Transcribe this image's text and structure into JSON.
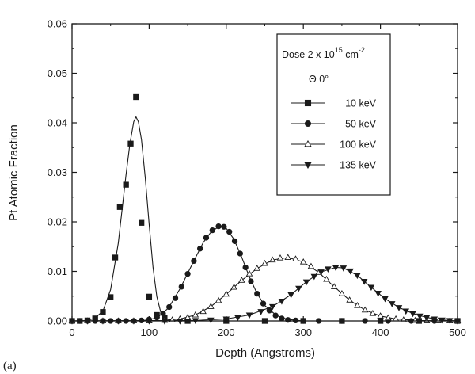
{
  "panel_label": "(a)",
  "chart_data": {
    "type": "scatter",
    "xlabel": "Depth (Angstroms)",
    "ylabel": "Pt Atomic Fraction",
    "xlim": [
      0,
      500
    ],
    "ylim": [
      0,
      0.06
    ],
    "x_ticks": [
      "0",
      "100",
      "200",
      "300",
      "400",
      "500"
    ],
    "y_ticks": [
      "0.00",
      "0.01",
      "0.02",
      "0.03",
      "0.04",
      "0.05",
      "0.06"
    ],
    "grid": false,
    "legend": {
      "placement": "top-right",
      "title_line1": "Dose 2 x 10",
      "title_sup1": "15",
      "title_mid": " cm",
      "title_sup2": "-2",
      "subtitle": "Θ  0°"
    },
    "series": [
      {
        "name": "10 keV",
        "marker": "square",
        "fill": "#1a1a1a",
        "points": [
          [
            0,
            0
          ],
          [
            10,
            0
          ],
          [
            20,
            0.0001
          ],
          [
            30,
            0.0005
          ],
          [
            40,
            0.0018
          ],
          [
            50,
            0.0048
          ],
          [
            56,
            0.0128
          ],
          [
            62,
            0.023
          ],
          [
            70,
            0.0275
          ],
          [
            76,
            0.0358
          ],
          [
            83,
            0.0452
          ],
          [
            90,
            0.0198
          ],
          [
            100,
            0.0049
          ],
          [
            110,
            0.0012
          ],
          [
            120,
            0.0006
          ],
          [
            150,
            0
          ],
          [
            200,
            0
          ],
          [
            250,
            0
          ],
          [
            300,
            0
          ],
          [
            350,
            0
          ],
          [
            400,
            0
          ],
          [
            450,
            0
          ],
          [
            500,
            0
          ]
        ],
        "fit": [
          [
            0,
            0
          ],
          [
            20,
            0.0001
          ],
          [
            30,
            0.0006
          ],
          [
            40,
            0.002
          ],
          [
            50,
            0.0063
          ],
          [
            60,
            0.0157
          ],
          [
            70,
            0.0295
          ],
          [
            75,
            0.0358
          ],
          [
            80,
            0.0402
          ],
          [
            83,
            0.0412
          ],
          [
            86,
            0.0402
          ],
          [
            90,
            0.0366
          ],
          [
            95,
            0.0289
          ],
          [
            100,
            0.0195
          ],
          [
            105,
            0.0108
          ],
          [
            110,
            0.0049
          ],
          [
            115,
            0.0018
          ],
          [
            120,
            0.0006
          ],
          [
            130,
            0.0001
          ],
          [
            140,
            0
          ],
          [
            500,
            0
          ]
        ]
      },
      {
        "name": "50 keV",
        "marker": "circle",
        "fill": "#1a1a1a",
        "points": [
          [
            0,
            0
          ],
          [
            10,
            0
          ],
          [
            20,
            0
          ],
          [
            30,
            0
          ],
          [
            40,
            0
          ],
          [
            50,
            0
          ],
          [
            60,
            0
          ],
          [
            70,
            0
          ],
          [
            80,
            0
          ],
          [
            90,
            0.0001
          ],
          [
            100,
            0.0003
          ],
          [
            110,
            0.0007
          ],
          [
            118,
            0.0015
          ],
          [
            126,
            0.0028
          ],
          [
            134,
            0.0046
          ],
          [
            142,
            0.0069
          ],
          [
            150,
            0.0095
          ],
          [
            158,
            0.0121
          ],
          [
            166,
            0.0146
          ],
          [
            174,
            0.0168
          ],
          [
            182,
            0.0183
          ],
          [
            190,
            0.0191
          ],
          [
            197,
            0.019
          ],
          [
            204,
            0.018
          ],
          [
            211,
            0.0161
          ],
          [
            218,
            0.0136
          ],
          [
            225,
            0.0108
          ],
          [
            232,
            0.008
          ],
          [
            240,
            0.0055
          ],
          [
            248,
            0.0035
          ],
          [
            256,
            0.0021
          ],
          [
            264,
            0.0011
          ],
          [
            272,
            0.0005
          ],
          [
            280,
            0.0002
          ],
          [
            290,
            0.0001
          ],
          [
            300,
            0
          ],
          [
            320,
            0
          ],
          [
            350,
            0
          ],
          [
            380,
            0
          ],
          [
            410,
            0
          ],
          [
            440,
            0
          ],
          [
            470,
            0
          ],
          [
            500,
            0
          ]
        ],
        "fit": [
          [
            0,
            0
          ],
          [
            90,
            0
          ],
          [
            110,
            0.0006
          ],
          [
            125,
            0.0026
          ],
          [
            140,
            0.0065
          ],
          [
            155,
            0.0112
          ],
          [
            170,
            0.0158
          ],
          [
            180,
            0.0179
          ],
          [
            190,
            0.019
          ],
          [
            195,
            0.0192
          ],
          [
            200,
            0.0187
          ],
          [
            210,
            0.0165
          ],
          [
            220,
            0.0129
          ],
          [
            230,
            0.0089
          ],
          [
            240,
            0.0055
          ],
          [
            250,
            0.0031
          ],
          [
            265,
            0.0011
          ],
          [
            280,
            0.0003
          ],
          [
            300,
            0
          ],
          [
            500,
            0
          ]
        ]
      },
      {
        "name": "100 keV",
        "marker": "triangle-up",
        "fill": "#ffffff",
        "points": [
          [
            0,
            0
          ],
          [
            20,
            0
          ],
          [
            40,
            0
          ],
          [
            60,
            0
          ],
          [
            80,
            0
          ],
          [
            100,
            0
          ],
          [
            120,
            0.0001
          ],
          [
            130,
            0.0002
          ],
          [
            140,
            0.0004
          ],
          [
            150,
            0.0007
          ],
          [
            160,
            0.0012
          ],
          [
            170,
            0.0019
          ],
          [
            180,
            0.0029
          ],
          [
            190,
            0.0041
          ],
          [
            200,
            0.0054
          ],
          [
            210,
            0.0068
          ],
          [
            220,
            0.0082
          ],
          [
            230,
            0.0095
          ],
          [
            240,
            0.0106
          ],
          [
            250,
            0.0116
          ],
          [
            260,
            0.0123
          ],
          [
            270,
            0.0127
          ],
          [
            280,
            0.0128
          ],
          [
            290,
            0.0125
          ],
          [
            300,
            0.0119
          ],
          [
            310,
            0.011
          ],
          [
            320,
            0.0098
          ],
          [
            330,
            0.0084
          ],
          [
            340,
            0.0069
          ],
          [
            350,
            0.0055
          ],
          [
            360,
            0.0042
          ],
          [
            370,
            0.0031
          ],
          [
            380,
            0.0022
          ],
          [
            390,
            0.0015
          ],
          [
            400,
            0.001
          ],
          [
            410,
            0.0006
          ],
          [
            420,
            0.0004
          ],
          [
            430,
            0.0002
          ],
          [
            445,
            0.0001
          ],
          [
            460,
            0
          ],
          [
            475,
            0
          ],
          [
            490,
            0
          ],
          [
            500,
            0
          ]
        ],
        "fit": [
          [
            0,
            0
          ],
          [
            120,
            0.0001
          ],
          [
            140,
            0.0004
          ],
          [
            160,
            0.0012
          ],
          [
            180,
            0.0029
          ],
          [
            200,
            0.0054
          ],
          [
            220,
            0.0082
          ],
          [
            240,
            0.0106
          ],
          [
            260,
            0.0123
          ],
          [
            280,
            0.0128
          ],
          [
            300,
            0.0119
          ],
          [
            320,
            0.0098
          ],
          [
            340,
            0.0069
          ],
          [
            360,
            0.0042
          ],
          [
            380,
            0.0022
          ],
          [
            400,
            0.001
          ],
          [
            420,
            0.0004
          ],
          [
            450,
            0.0001
          ],
          [
            500,
            0
          ]
        ]
      },
      {
        "name": "135 keV",
        "marker": "triangle-down",
        "fill": "#1a1a1a",
        "points": [
          [
            0,
            0
          ],
          [
            20,
            0
          ],
          [
            40,
            0
          ],
          [
            60,
            0
          ],
          [
            80,
            0
          ],
          [
            100,
            0
          ],
          [
            120,
            0
          ],
          [
            140,
            0
          ],
          [
            160,
            0.0001
          ],
          [
            180,
            0.0002
          ],
          [
            200,
            0.0004
          ],
          [
            215,
            0.0007
          ],
          [
            230,
            0.0012
          ],
          [
            245,
            0.0019
          ],
          [
            260,
            0.0029
          ],
          [
            272,
            0.004
          ],
          [
            284,
            0.0053
          ],
          [
            294,
            0.0066
          ],
          [
            304,
            0.0079
          ],
          [
            314,
            0.009
          ],
          [
            323,
            0.0099
          ],
          [
            332,
            0.0105
          ],
          [
            342,
            0.0108
          ],
          [
            352,
            0.0107
          ],
          [
            361,
            0.0101
          ],
          [
            370,
            0.0092
          ],
          [
            379,
            0.008
          ],
          [
            388,
            0.0068
          ],
          [
            397,
            0.0056
          ],
          [
            406,
            0.0045
          ],
          [
            415,
            0.0035
          ],
          [
            424,
            0.0027
          ],
          [
            433,
            0.002
          ],
          [
            442,
            0.0015
          ],
          [
            451,
            0.001
          ],
          [
            460,
            0.0007
          ],
          [
            470,
            0.0004
          ],
          [
            480,
            0.0002
          ],
          [
            490,
            0.0001
          ],
          [
            500,
            0
          ]
        ],
        "fit": [
          [
            0,
            0
          ],
          [
            160,
            0.0001
          ],
          [
            200,
            0.0004
          ],
          [
            230,
            0.0012
          ],
          [
            260,
            0.0029
          ],
          [
            284,
            0.0053
          ],
          [
            304,
            0.0079
          ],
          [
            323,
            0.0099
          ],
          [
            342,
            0.0108
          ],
          [
            352,
            0.0107
          ],
          [
            370,
            0.0092
          ],
          [
            388,
            0.0068
          ],
          [
            406,
            0.0045
          ],
          [
            424,
            0.0027
          ],
          [
            442,
            0.0015
          ],
          [
            460,
            0.0007
          ],
          [
            480,
            0.0002
          ],
          [
            500,
            0
          ]
        ]
      }
    ]
  }
}
